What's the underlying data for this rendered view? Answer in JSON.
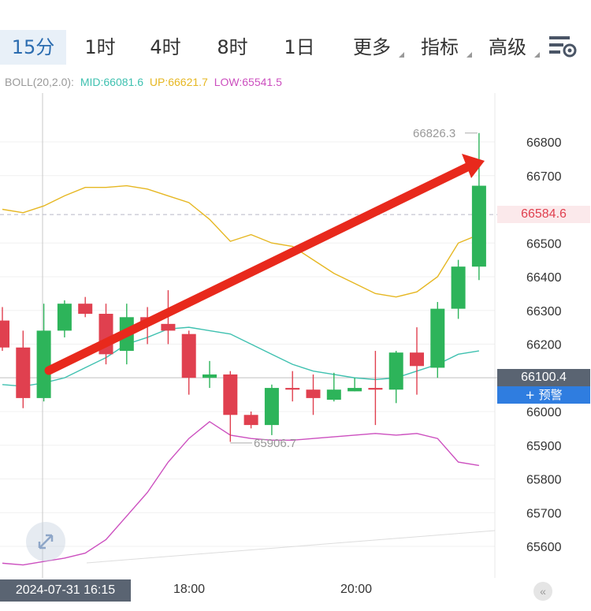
{
  "tabs": [
    {
      "label": "15分",
      "active": true
    },
    {
      "label": "1时",
      "active": false
    },
    {
      "label": "4时",
      "active": false
    },
    {
      "label": "8时",
      "active": false
    },
    {
      "label": "1日",
      "active": false
    },
    {
      "label": "更多",
      "active": false,
      "dropdown": true
    },
    {
      "label": "指标",
      "active": false,
      "dropdown": true
    },
    {
      "label": "高级",
      "active": false,
      "dropdown": true
    }
  ],
  "settings_icon": "chart-settings-icon",
  "indicator": {
    "name": "BOLL(20,2.0):",
    "mid": "MID:66081.6",
    "up": "UP:66621.7",
    "low": "LOW:65541.5"
  },
  "price_tags": {
    "current": "66584.6",
    "crosshair": "66100.4",
    "alert": "+ 预警"
  },
  "time_axis": {
    "cursor": "2024-07-31 16:15",
    "labels": [
      "18:00",
      "20:00"
    ]
  },
  "colors": {
    "up": "#2db45a",
    "down": "#e0404f",
    "mid": "#3fc1b0",
    "upper": "#e6b722",
    "lower": "#cc4fbf",
    "arrow": "#e8291c",
    "crosshair_tag": "#5a6472",
    "alert_tag": "#2f7de0",
    "current_tag_text": "#e0404f"
  },
  "chart_data": {
    "type": "candlestick",
    "ylim": [
      65525,
      66900
    ],
    "yticks": [
      66800,
      66700,
      66500,
      66400,
      66300,
      66200,
      66000,
      65900,
      65800,
      65700,
      65600
    ],
    "max_label": "66826.3",
    "min_label": "65906.7",
    "candles": [
      {
        "o": 66270,
        "c": 66190,
        "h": 66310,
        "l": 66180
      },
      {
        "o": 66190,
        "c": 66040,
        "h": 66240,
        "l": 66010
      },
      {
        "o": 66040,
        "c": 66240,
        "h": 66320,
        "l": 66030
      },
      {
        "o": 66240,
        "c": 66320,
        "h": 66330,
        "l": 66220
      },
      {
        "o": 66320,
        "c": 66290,
        "h": 66340,
        "l": 66280
      },
      {
        "o": 66290,
        "c": 66170,
        "h": 66320,
        "l": 66140
      },
      {
        "o": 66180,
        "c": 66280,
        "h": 66320,
        "l": 66140
      },
      {
        "o": 66280,
        "c": 66260,
        "h": 66310,
        "l": 66200
      },
      {
        "o": 66260,
        "c": 66240,
        "h": 66360,
        "l": 66200
      },
      {
        "o": 66230,
        "c": 66100,
        "h": 66240,
        "l": 66050
      },
      {
        "o": 66100,
        "c": 66110,
        "h": 66150,
        "l": 66070
      },
      {
        "o": 66110,
        "c": 65990,
        "h": 66120,
        "l": 65910
      },
      {
        "o": 65990,
        "c": 65960,
        "h": 66000,
        "l": 65950
      },
      {
        "o": 65960,
        "c": 66070,
        "h": 66080,
        "l": 65930
      },
      {
        "o": 66070,
        "c": 66065,
        "h": 66120,
        "l": 66030
      },
      {
        "o": 66065,
        "c": 66040,
        "h": 66110,
        "l": 65990
      },
      {
        "o": 66035,
        "c": 66065,
        "h": 66115,
        "l": 66030
      },
      {
        "o": 66060,
        "c": 66070,
        "h": 66100,
        "l": 66060
      },
      {
        "o": 66070,
        "c": 66065,
        "h": 66180,
        "l": 65960
      },
      {
        "o": 66065,
        "c": 66175,
        "h": 66180,
        "l": 66025
      },
      {
        "o": 66175,
        "c": 66135,
        "h": 66250,
        "l": 66050
      },
      {
        "o": 66130,
        "c": 66305,
        "h": 66325,
        "l": 66100
      },
      {
        "o": 66305,
        "c": 66430,
        "h": 66450,
        "l": 66275
      },
      {
        "o": 66430,
        "c": 66670,
        "h": 66826.3,
        "l": 66390
      }
    ],
    "bands": {
      "upper": [
        66600,
        66590,
        66610,
        66640,
        66665,
        66665,
        66670,
        66660,
        66640,
        66620,
        66570,
        66505,
        66525,
        66500,
        66490,
        66450,
        66410,
        66380,
        66350,
        66340,
        66355,
        66400,
        66500,
        66525
      ],
      "mid": [
        66080,
        66075,
        66085,
        66100,
        66130,
        66160,
        66200,
        66220,
        66245,
        66250,
        66240,
        66230,
        66200,
        66170,
        66140,
        66120,
        66110,
        66100,
        66095,
        66100,
        66120,
        66140,
        66170,
        66180
      ],
      "lower": [
        65550,
        65545,
        65555,
        65565,
        65580,
        65620,
        65690,
        65760,
        65850,
        65920,
        65970,
        65930,
        65920,
        65915,
        65915,
        65920,
        65925,
        65930,
        65935,
        65930,
        65935,
        65920,
        65850,
        65840
      ]
    }
  }
}
